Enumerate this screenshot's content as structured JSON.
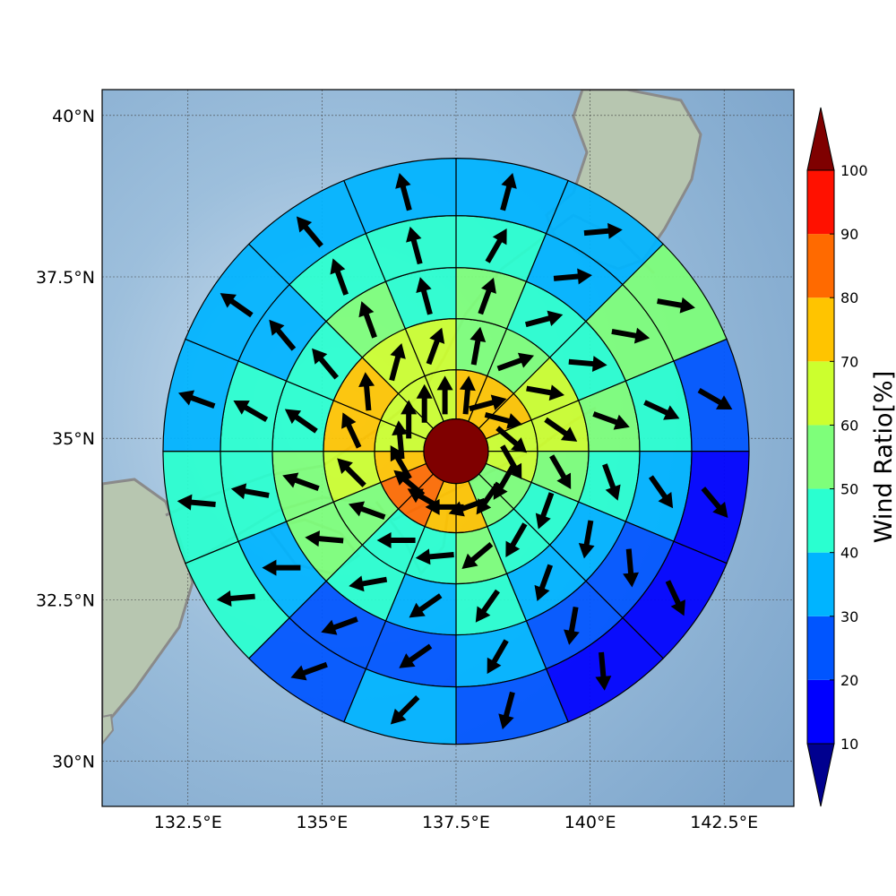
{
  "map": {
    "lon_range": [
      130.9,
      143.8
    ],
    "lat_range": [
      29.3,
      40.4
    ],
    "lon_ticks": [
      {
        "value": 132.5,
        "label": "132.5°E"
      },
      {
        "value": 135,
        "label": "135°E"
      },
      {
        "value": 137.5,
        "label": "137.5°E"
      },
      {
        "value": 140,
        "label": "140°E"
      },
      {
        "value": 142.5,
        "label": "142.5°E"
      }
    ],
    "lat_ticks": [
      {
        "value": 40,
        "label": "40°N"
      },
      {
        "value": 37.5,
        "label": "37.5°N"
      },
      {
        "value": 35,
        "label": "35°N"
      },
      {
        "value": 32.5,
        "label": "32.5°N"
      },
      {
        "value": 30,
        "label": "30°N"
      }
    ],
    "colors": {
      "sea": "#85aed3",
      "land": "#b9c9b4",
      "coastline": "#8a8a8a",
      "gridline": "#444444"
    }
  },
  "chart_data": {
    "type": "polar_heatmap",
    "center": {
      "lon": 137.5,
      "lat": 34.8
    },
    "ring_count": 5,
    "sector_count": 16,
    "sector_start": "north, clockwise",
    "center_value": 100,
    "rings": [
      {
        "ring": 1,
        "values": [
          75,
          75,
          75,
          65,
          65,
          55,
          55,
          75,
          75,
          85,
          85,
          75,
          65,
          65,
          65,
          65
        ],
        "wind_dir_deg": [
          5,
          75,
          105,
          130,
          150,
          210,
          215,
          250,
          270,
          300,
          310,
          330,
          355,
          0,
          0,
          0
        ]
      },
      {
        "ring": 2,
        "values": [
          55,
          55,
          65,
          65,
          55,
          45,
          45,
          55,
          45,
          45,
          55,
          65,
          75,
          75,
          65,
          65
        ],
        "wind_dir_deg": [
          10,
          70,
          100,
          125,
          150,
          200,
          210,
          230,
          265,
          270,
          290,
          315,
          335,
          355,
          15,
          20
        ]
      },
      {
        "ring": 3,
        "values": [
          55,
          45,
          45,
          55,
          45,
          35,
          35,
          45,
          35,
          45,
          55,
          55,
          45,
          45,
          55,
          45
        ],
        "wind_dir_deg": [
          20,
          75,
          95,
          110,
          160,
          190,
          200,
          215,
          235,
          260,
          275,
          290,
          305,
          320,
          340,
          345
        ]
      },
      {
        "ring": 4,
        "values": [
          45,
          35,
          55,
          45,
          35,
          25,
          25,
          35,
          25,
          25,
          35,
          45,
          45,
          35,
          45,
          45
        ],
        "wind_dir_deg": [
          30,
          85,
          100,
          115,
          145,
          175,
          190,
          210,
          235,
          250,
          270,
          280,
          300,
          320,
          340,
          345
        ]
      },
      {
        "ring": 5,
        "values": [
          35,
          35,
          55,
          25,
          15,
          15,
          15,
          25,
          35,
          25,
          45,
          45,
          35,
          35,
          35,
          35
        ],
        "wind_dir_deg": [
          15,
          85,
          100,
          120,
          140,
          155,
          175,
          195,
          225,
          250,
          265,
          275,
          290,
          305,
          320,
          345
        ]
      }
    ],
    "colorbar": {
      "title": "Wind Ratio[%]",
      "ticks": [
        10,
        20,
        30,
        40,
        50,
        60,
        70,
        80,
        90,
        100
      ],
      "bands": [
        {
          "from": 10,
          "to": 20,
          "color": "#0000ff"
        },
        {
          "from": 20,
          "to": 30,
          "color": "#0055ff"
        },
        {
          "from": 30,
          "to": 40,
          "color": "#00b4ff"
        },
        {
          "from": 40,
          "to": 50,
          "color": "#2affd0"
        },
        {
          "from": 50,
          "to": 60,
          "color": "#7eff7a"
        },
        {
          "from": 60,
          "to": 70,
          "color": "#ccff2e"
        },
        {
          "from": 70,
          "to": 80,
          "color": "#ffc400"
        },
        {
          "from": 80,
          "to": 90,
          "color": "#ff6a00"
        },
        {
          "from": 90,
          "to": 100,
          "color": "#ff1100"
        }
      ],
      "under_color": "#00008f",
      "over_color": "#7f0000"
    }
  }
}
